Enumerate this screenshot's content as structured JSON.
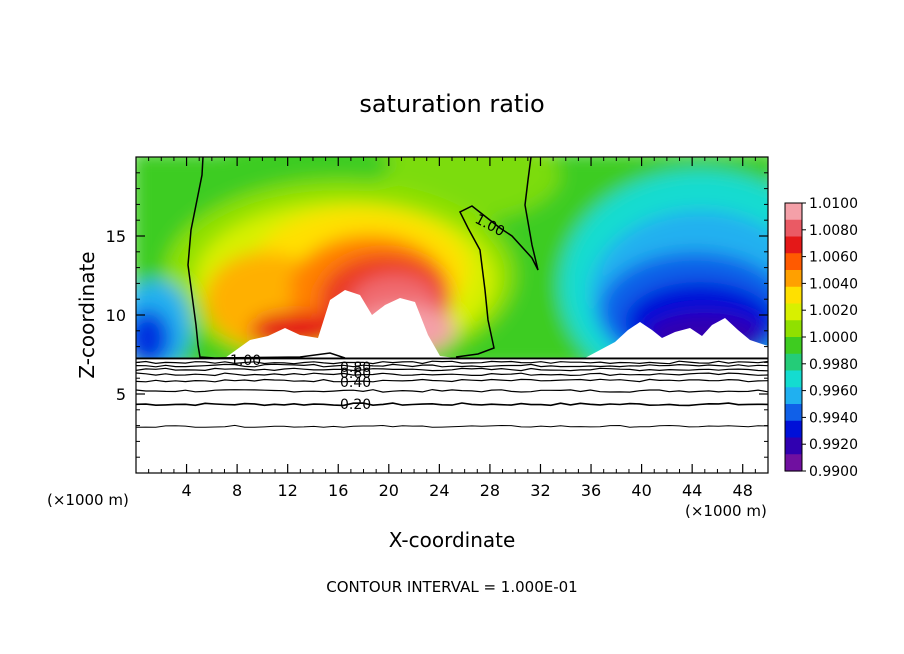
{
  "chart_data": {
    "type": "heatmap",
    "title": "saturation ratio",
    "xlabel": "X-coordinate",
    "ylabel": "Z-coordinate",
    "x_unit_left": "(×1000 m)",
    "x_unit_right": "(×1000 m)",
    "xlim": [
      0,
      50
    ],
    "ylim": [
      0,
      20
    ],
    "x_ticks": [
      4,
      8,
      12,
      16,
      20,
      24,
      28,
      32,
      36,
      40,
      44,
      48
    ],
    "y_ticks": [
      5,
      10,
      15
    ],
    "footer": "CONTOUR INTERVAL = 1.000E-01",
    "colorbar": {
      "min": 0.99,
      "max": 1.01,
      "labels": [
        "1.0100",
        "1.0080",
        "1.0060",
        "1.0040",
        "1.0020",
        "1.0000",
        "0.9980",
        "0.9960",
        "0.9940",
        "0.9920",
        "0.9900"
      ],
      "colors": [
        "#f4a0a8",
        "#ea5a64",
        "#e41818",
        "#ff5a00",
        "#ffa000",
        "#ffe000",
        "#d8f000",
        "#90e000",
        "#3ecc20",
        "#24cc78",
        "#14dcd0",
        "#20b0f0",
        "#1060e8",
        "#0010d8",
        "#3000b0",
        "#7010a0"
      ]
    },
    "contour_labels": [
      "1.00",
      "1.00",
      "0.80",
      "0.60",
      "0.40",
      "0.20"
    ]
  }
}
